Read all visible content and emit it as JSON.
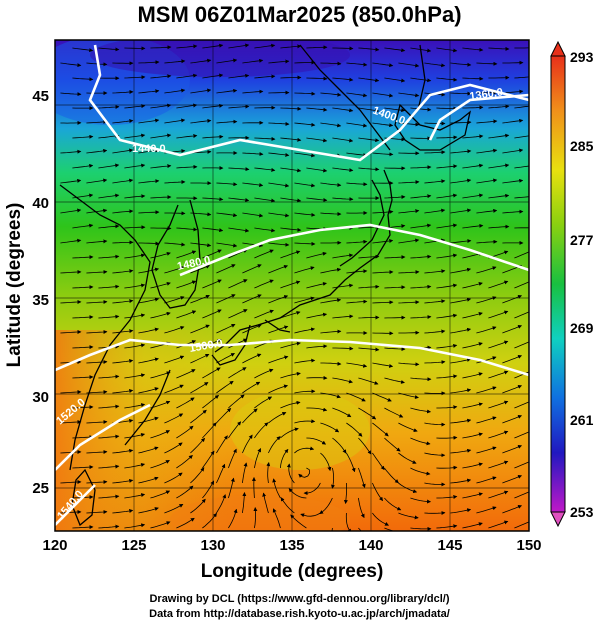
{
  "title": "MSM 06Z01Mar2025 (850.0hPa)",
  "x_axis": {
    "label": "Longitude (degrees)",
    "ticks": [
      "120",
      "125",
      "130",
      "135",
      "140",
      "145",
      "150"
    ]
  },
  "y_axis": {
    "label": "Latitude  (degrees)",
    "ticks": [
      "25",
      "30",
      "35",
      "40",
      "45"
    ]
  },
  "colorbar": {
    "labels": [
      "293",
      "285",
      "277",
      "269",
      "261",
      "253"
    ]
  },
  "contour_labels": [
    "1360.0",
    "1440.0",
    "1400.0",
    "1480.0",
    "1500.0",
    "1520.0",
    "1540.0"
  ],
  "credits": [
    "Drawing by DCL (https://www.gfd-dennou.org/library/dcl/)",
    "Data from http://database.rish.kyoto-u.ac.jp/arch/jmadata/"
  ],
  "colors": {
    "cold": "#2a1fd8",
    "mid": "#22c022",
    "warm": "#f07010",
    "contour": "#ffffff",
    "coast": "#000000"
  }
}
